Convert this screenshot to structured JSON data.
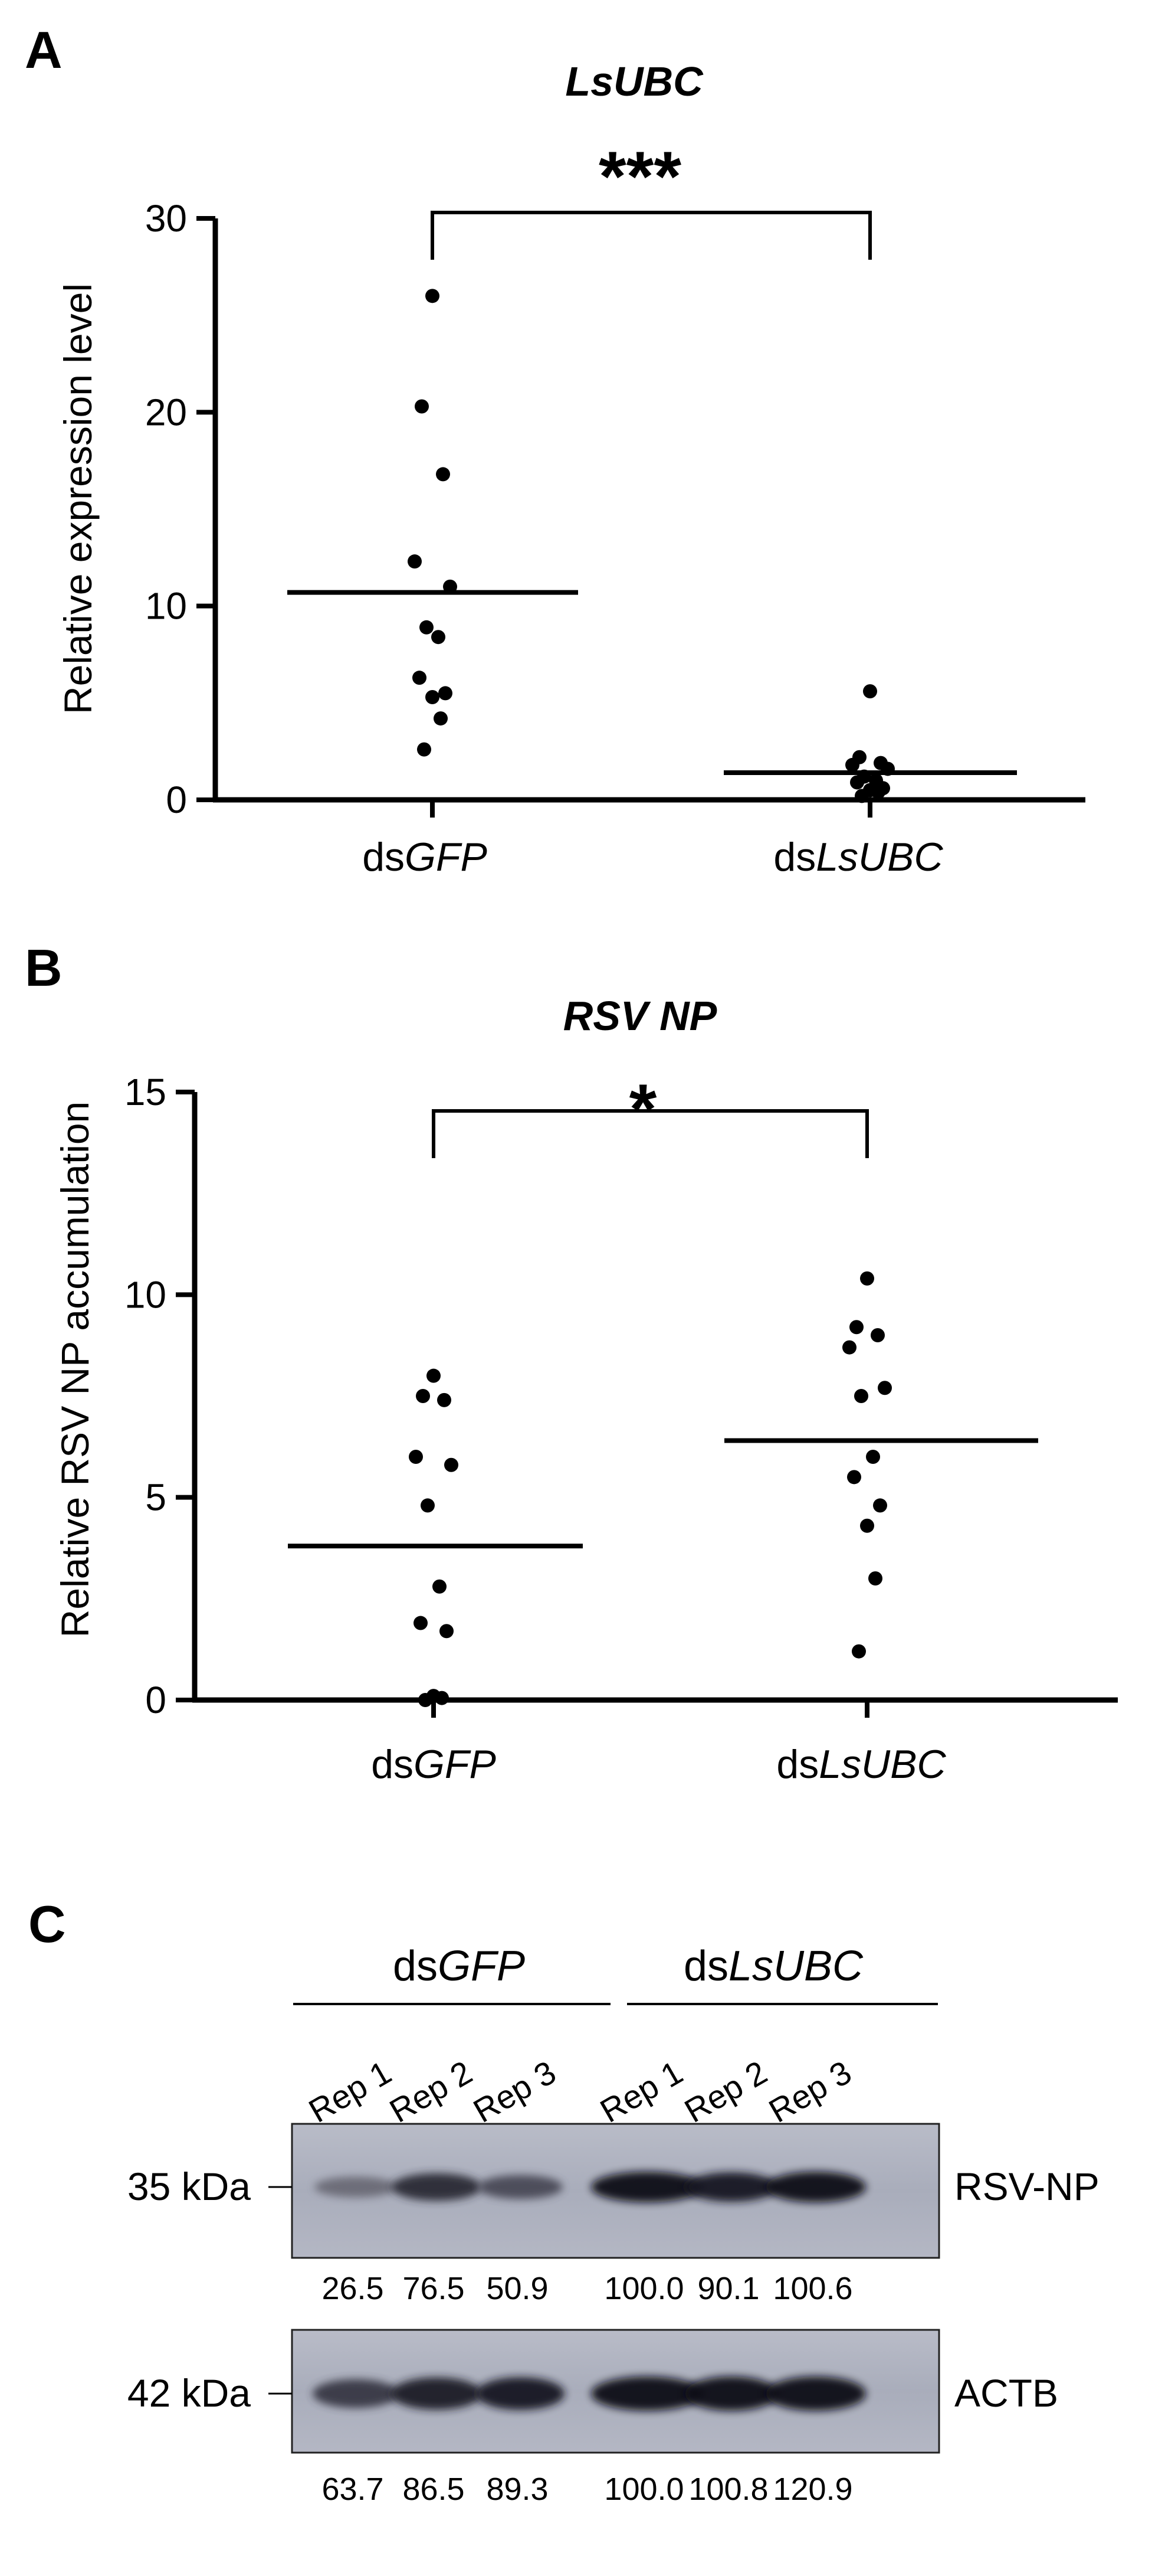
{
  "chart_data": [
    {
      "panel": "A",
      "type": "scatter",
      "title": "LsUBC",
      "ylabel": "Relative expression level",
      "ylim": [
        0,
        30
      ],
      "yticks": [
        "0",
        "10",
        "20",
        "30"
      ],
      "categories": [
        {
          "prefix": "ds",
          "italic": "GFP"
        },
        {
          "prefix": "ds",
          "italic": "LsUBC"
        }
      ],
      "series": [
        {
          "values": [
            26.0,
            20.3,
            16.8,
            12.3,
            11.0,
            8.9,
            8.4,
            6.3,
            5.5,
            5.3,
            4.2,
            2.6
          ],
          "mean": 10.7
        },
        {
          "values": [
            5.6,
            2.2,
            1.9,
            1.8,
            1.6,
            1.2,
            1.0,
            0.9,
            0.6,
            0.5,
            0.4,
            0.2
          ],
          "mean": 1.4
        }
      ],
      "significance": "***"
    },
    {
      "panel": "B",
      "type": "scatter",
      "title": "RSV NP",
      "ylabel": "Relative RSV NP accumulation",
      "ylim": [
        0,
        15
      ],
      "yticks": [
        "0",
        "5",
        "10",
        "15"
      ],
      "categories": [
        {
          "prefix": "ds",
          "italic": "GFP"
        },
        {
          "prefix": "ds",
          "italic": "LsUBC"
        }
      ],
      "series": [
        {
          "values": [
            8.0,
            7.5,
            7.4,
            6.0,
            5.8,
            4.8,
            2.8,
            1.9,
            1.7,
            0.1,
            0.05,
            0.0
          ],
          "mean": 3.8
        },
        {
          "values": [
            10.4,
            9.2,
            9.0,
            8.7,
            7.7,
            7.5,
            6.0,
            5.5,
            4.8,
            4.3,
            3.0,
            1.2
          ],
          "mean": 6.4
        }
      ],
      "significance": "*"
    }
  ],
  "blot": {
    "panel": "C",
    "groups": [
      {
        "prefix": "ds",
        "italic": "GFP"
      },
      {
        "prefix": "ds",
        "italic": "LsUBC"
      }
    ],
    "lanes": [
      "Rep 1",
      "Rep 2",
      "Rep 3",
      "Rep 1",
      "Rep 2",
      "Rep 3"
    ],
    "rows": [
      {
        "size": "35 kDa",
        "name": "RSV-NP",
        "values": [
          "26.5",
          "76.5",
          "50.9",
          "100.0",
          "90.1",
          "100.6"
        ],
        "intensity": [
          0.265,
          0.765,
          0.509,
          1.0,
          0.901,
          1.006
        ]
      },
      {
        "size": "42 kDa",
        "name": "ACTB",
        "values": [
          "63.7",
          "86.5",
          "89.3",
          "100.0",
          "100.8",
          "120.9"
        ],
        "intensity": [
          0.637,
          0.865,
          0.893,
          1.0,
          1.008,
          1.209
        ]
      }
    ]
  }
}
